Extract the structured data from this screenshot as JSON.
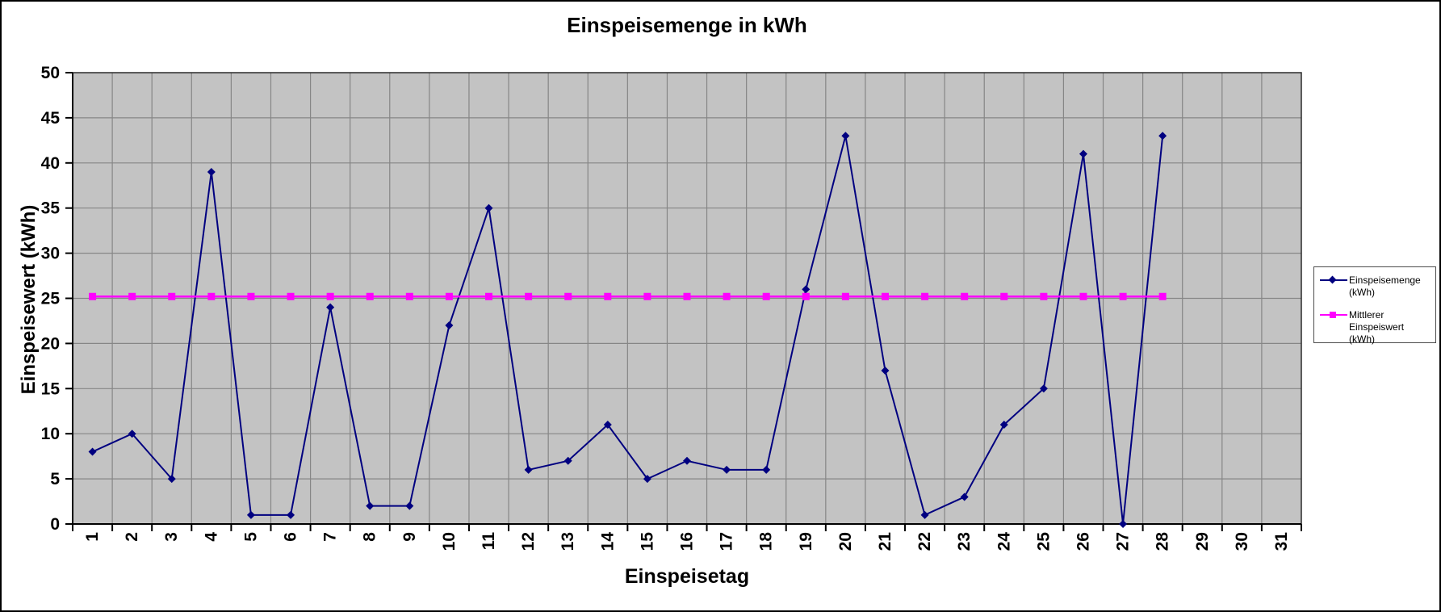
{
  "chart_data": {
    "type": "line",
    "title": "Einspeisemenge in kWh",
    "xlabel": "Einspeisetag",
    "ylabel": "Einspeisewert (kWh)",
    "categories": [
      "1",
      "2",
      "3",
      "4",
      "5",
      "6",
      "7",
      "8",
      "9",
      "10",
      "11",
      "12",
      "13",
      "14",
      "15",
      "16",
      "17",
      "18",
      "19",
      "20",
      "21",
      "22",
      "23",
      "24",
      "25",
      "26",
      "27",
      "28",
      "29",
      "30",
      "31"
    ],
    "y_ticks": [
      "0",
      "5",
      "10",
      "15",
      "20",
      "25",
      "30",
      "35",
      "40",
      "45",
      "50"
    ],
    "ylim": [
      0,
      50
    ],
    "grid": true,
    "plot_background": "#c3c3c3",
    "gridline_color": "#868686",
    "legend_position": "right",
    "series": [
      {
        "name": "Einspeisemenge (kWh)",
        "color": "#000080",
        "marker": "diamond",
        "values": [
          8,
          10,
          5,
          39,
          1,
          1,
          24,
          2,
          2,
          22,
          35,
          6,
          7,
          11,
          5,
          7,
          6,
          6,
          26,
          43,
          17,
          1,
          3,
          11,
          15,
          41,
          0,
          43,
          null,
          null,
          null
        ]
      },
      {
        "name": "Mittlerer Einspeiswert (kWh)",
        "color": "#ff00ff",
        "marker": "square",
        "values": [
          25.2,
          25.2,
          25.2,
          25.2,
          25.2,
          25.2,
          25.2,
          25.2,
          25.2,
          25.2,
          25.2,
          25.2,
          25.2,
          25.2,
          25.2,
          25.2,
          25.2,
          25.2,
          25.2,
          25.2,
          25.2,
          25.2,
          25.2,
          25.2,
          25.2,
          25.2,
          25.2,
          25.2,
          null,
          null,
          null
        ]
      }
    ]
  }
}
